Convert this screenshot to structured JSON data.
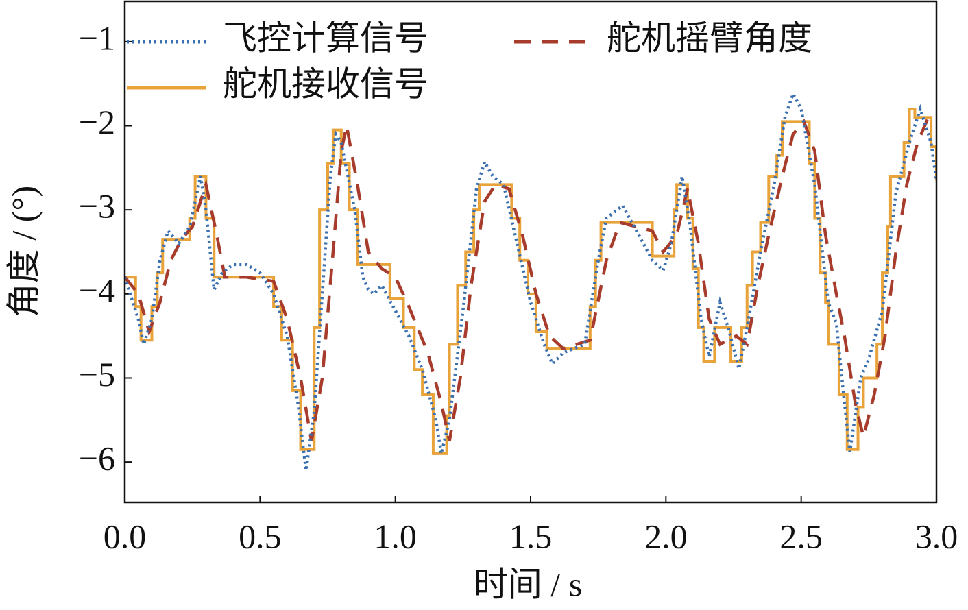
{
  "chart_data": {
    "type": "line",
    "xlabel": "时间 / s",
    "ylabel": "角度 / (°)",
    "xlim": [
      0,
      3
    ],
    "ylim": [
      -6.48,
      -0.52
    ],
    "xticks": [
      {
        "value": 0,
        "label": "0.0"
      },
      0.5,
      {
        "value": 1,
        "label": "1.0"
      },
      1.5,
      {
        "value": 2,
        "label": "2.0"
      },
      2.5,
      {
        "value": 3,
        "label": "3.0"
      }
    ],
    "yticks": [
      {
        "value": -1,
        "label": "−1"
      },
      {
        "value": -2,
        "label": "−2"
      },
      {
        "value": -3,
        "label": "−3"
      },
      {
        "value": -4,
        "label": "−4"
      },
      {
        "value": -5,
        "label": "−5"
      },
      {
        "value": -6,
        "label": "−6"
      }
    ],
    "legend": "upper left",
    "series": [
      {
        "name": "飞控计算信号",
        "color": "#3a6fb0",
        "style": "dotted",
        "x": [
          0,
          0.05,
          0.07,
          0.1,
          0.13,
          0.16,
          0.2,
          0.24,
          0.28,
          0.3,
          0.33,
          0.36,
          0.4,
          0.45,
          0.5,
          0.55,
          0.6,
          0.64,
          0.67,
          0.7,
          0.73,
          0.76,
          0.78,
          0.8,
          0.85,
          0.88,
          0.9,
          0.92,
          0.95,
          1.0,
          1.05,
          1.1,
          1.15,
          1.17,
          1.2,
          1.25,
          1.3,
          1.33,
          1.36,
          1.4,
          1.45,
          1.5,
          1.55,
          1.58,
          1.62,
          1.7,
          1.75,
          1.78,
          1.82,
          1.84,
          1.9,
          1.95,
          1.99,
          2.02,
          2.06,
          2.09,
          2.13,
          2.16,
          2.2,
          2.23,
          2.27,
          2.3,
          2.35,
          2.4,
          2.44,
          2.47,
          2.5,
          2.55,
          2.6,
          2.63,
          2.66,
          2.68,
          2.72,
          2.75,
          2.8,
          2.85,
          2.9,
          2.94,
          2.98,
          3.0
        ],
        "values": [
          -3.8,
          -4.3,
          -4.6,
          -4.3,
          -3.6,
          -3.25,
          -3.4,
          -3.2,
          -2.6,
          -3.0,
          -3.95,
          -3.75,
          -3.65,
          -3.65,
          -3.75,
          -4.0,
          -4.5,
          -5.3,
          -6.1,
          -5.4,
          -4.0,
          -2.6,
          -2.1,
          -2.2,
          -3.0,
          -3.8,
          -3.95,
          -4.0,
          -3.9,
          -4.2,
          -4.5,
          -4.9,
          -5.5,
          -5.9,
          -5.5,
          -4.2,
          -2.75,
          -2.43,
          -2.6,
          -2.7,
          -3.4,
          -4.1,
          -4.6,
          -4.83,
          -4.7,
          -4.6,
          -3.6,
          -3.1,
          -3.0,
          -2.95,
          -3.3,
          -3.6,
          -3.72,
          -3.4,
          -2.6,
          -3.2,
          -4.3,
          -4.75,
          -4.1,
          -4.4,
          -4.89,
          -4.4,
          -3.5,
          -2.7,
          -1.9,
          -1.62,
          -1.8,
          -2.7,
          -4.1,
          -4.35,
          -5.3,
          -5.88,
          -5.0,
          -4.77,
          -4.2,
          -2.8,
          -2.2,
          -1.8,
          -2.2,
          -2.65
        ]
      },
      {
        "name": "舵机摇臂角度",
        "color": "#a83c2c",
        "style": "dashed",
        "x": [
          0,
          0.05,
          0.09,
          0.13,
          0.17,
          0.21,
          0.25,
          0.3,
          0.34,
          0.37,
          0.45,
          0.55,
          0.6,
          0.65,
          0.69,
          0.73,
          0.77,
          0.8,
          0.82,
          0.86,
          0.9,
          0.95,
          1.0,
          1.05,
          1.12,
          1.17,
          1.2,
          1.24,
          1.28,
          1.33,
          1.37,
          1.42,
          1.47,
          1.52,
          1.57,
          1.62,
          1.72,
          1.78,
          1.83,
          1.95,
          1.99,
          2.04,
          2.08,
          2.12,
          2.16,
          2.2,
          2.26,
          2.3,
          2.34,
          2.38,
          2.43,
          2.47,
          2.51,
          2.55,
          2.59,
          2.63,
          2.66,
          2.7,
          2.73,
          2.77,
          2.81,
          2.85,
          2.89,
          2.93,
          2.97,
          3.0
        ],
        "values": [
          -3.8,
          -4.0,
          -4.45,
          -4.1,
          -3.6,
          -3.35,
          -3.2,
          -2.7,
          -3.3,
          -3.8,
          -3.8,
          -3.85,
          -4.3,
          -5.0,
          -5.75,
          -5.0,
          -3.5,
          -2.3,
          -2.0,
          -2.7,
          -3.5,
          -3.7,
          -3.8,
          -4.15,
          -4.7,
          -5.3,
          -5.75,
          -5.0,
          -3.9,
          -2.9,
          -2.7,
          -2.75,
          -3.3,
          -4.0,
          -4.5,
          -4.65,
          -4.55,
          -3.6,
          -3.15,
          -3.25,
          -3.5,
          -3.3,
          -2.75,
          -3.4,
          -4.3,
          -4.6,
          -4.5,
          -4.6,
          -3.9,
          -3.3,
          -2.6,
          -2.1,
          -1.95,
          -2.3,
          -3.3,
          -4.0,
          -4.5,
          -5.3,
          -5.7,
          -5.2,
          -4.5,
          -3.5,
          -2.7,
          -2.2,
          -1.9,
          -1.9
        ]
      },
      {
        "name": "舵机接收信号",
        "color": "#e8a33a",
        "style": "solid",
        "interpolation": "step-after",
        "x": [
          0,
          0.04,
          0.06,
          0.1,
          0.12,
          0.14,
          0.24,
          0.26,
          0.3,
          0.33,
          0.55,
          0.58,
          0.62,
          0.65,
          0.7,
          0.72,
          0.75,
          0.77,
          0.8,
          0.83,
          0.86,
          0.98,
          1.03,
          1.07,
          1.1,
          1.14,
          1.19,
          1.2,
          1.23,
          1.26,
          1.29,
          1.31,
          1.43,
          1.46,
          1.49,
          1.52,
          1.56,
          1.72,
          1.74,
          1.76,
          1.95,
          2.03,
          2.04,
          2.08,
          2.1,
          2.12,
          2.14,
          2.18,
          2.24,
          2.28,
          2.3,
          2.32,
          2.35,
          2.38,
          2.41,
          2.43,
          2.53,
          2.55,
          2.57,
          2.59,
          2.6,
          2.64,
          2.67,
          2.71,
          2.73,
          2.78,
          2.8,
          2.82,
          2.83,
          2.88,
          2.9,
          2.92,
          2.98,
          3.0
        ],
        "values": [
          -3.8,
          -4.15,
          -4.55,
          -4.15,
          -3.75,
          -3.35,
          -3.1,
          -2.6,
          -3.1,
          -3.8,
          -4.15,
          -4.55,
          -5.15,
          -5.85,
          -4.4,
          -3.0,
          -2.45,
          -2.05,
          -2.45,
          -3.0,
          -3.65,
          -4.05,
          -4.4,
          -4.9,
          -5.2,
          -5.9,
          -5.45,
          -4.6,
          -3.9,
          -3.5,
          -3.0,
          -2.7,
          -3.1,
          -3.6,
          -4.0,
          -4.45,
          -4.65,
          -4.15,
          -3.6,
          -3.15,
          -3.55,
          -3.0,
          -2.7,
          -3.1,
          -3.7,
          -4.4,
          -4.8,
          -4.4,
          -4.8,
          -4.4,
          -3.9,
          -3.5,
          -3.15,
          -2.6,
          -2.35,
          -1.95,
          -2.45,
          -3.1,
          -3.75,
          -4.1,
          -4.6,
          -5.2,
          -5.85,
          -5.35,
          -5.0,
          -4.6,
          -3.75,
          -3.2,
          -2.6,
          -2.2,
          -1.8,
          -1.9,
          -2.25,
          -2.65
        ]
      }
    ]
  }
}
